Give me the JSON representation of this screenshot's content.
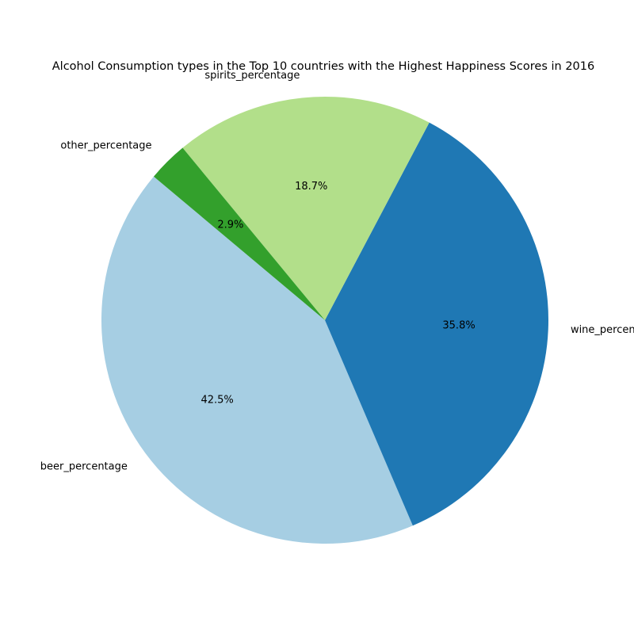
{
  "chart_data": {
    "type": "pie",
    "title": "Alcohol Consumption types in the Top 10 countries with the Highest Happiness Scores in 2016",
    "start_angle_deg": 140,
    "direction": "counterclockwise",
    "slices": [
      {
        "label": "beer_percentage",
        "value": 42.5,
        "pct_label": "42.5%",
        "color": "#a6cee3"
      },
      {
        "label": "wine_percentage",
        "value": 35.8,
        "pct_label": "35.8%",
        "color": "#1f78b4"
      },
      {
        "label": "spirits_percentage",
        "value": 18.7,
        "pct_label": "18.7%",
        "color": "#b2df8a"
      },
      {
        "label": "other_percentage",
        "value": 2.9,
        "pct_label": "2.9%",
        "color": "#33a02c"
      }
    ]
  }
}
